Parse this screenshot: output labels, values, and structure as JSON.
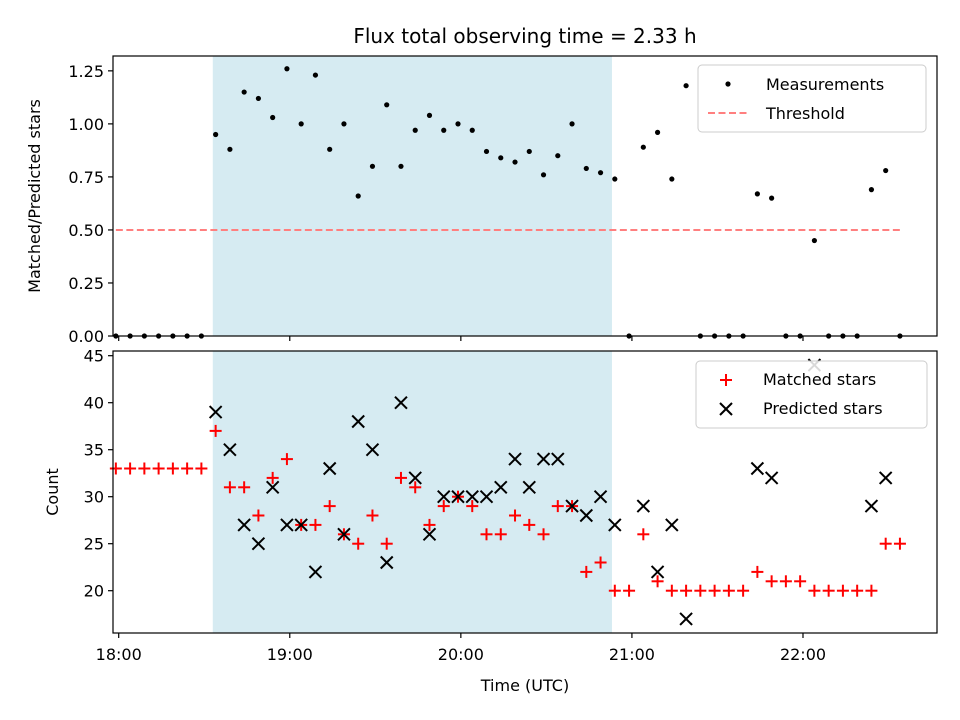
{
  "chart_data": [
    {
      "type": "scatter",
      "title": "Flux total observing time = 2.33 h",
      "xlabel": "",
      "ylabel": "Matched/Predicted stars",
      "xlim": [
        "17:58",
        "22:47"
      ],
      "ylim": [
        0,
        1.32
      ],
      "yticks": [
        0.0,
        0.25,
        0.5,
        0.75,
        1.0,
        1.25
      ],
      "ytick_labels": [
        "0.00",
        "0.25",
        "0.50",
        "0.75",
        "1.00",
        "1.25"
      ],
      "shaded_region": {
        "start": "18:33",
        "end": "20:53",
        "color": "#add8e6"
      },
      "legend": {
        "position": "upper right",
        "entries": [
          "Measurements",
          "Threshold"
        ]
      },
      "series": [
        {
          "name": "Measurements",
          "marker": "dot",
          "color": "#000000",
          "x": [
            "17:59",
            "18:04",
            "18:09",
            "18:14",
            "18:19",
            "18:24",
            "18:29",
            "18:34",
            "18:39",
            "18:44",
            "18:49",
            "18:54",
            "18:59",
            "19:04",
            "19:09",
            "19:14",
            "19:19",
            "19:24",
            "19:29",
            "19:34",
            "19:39",
            "19:44",
            "19:49",
            "19:54",
            "19:59",
            "20:04",
            "20:09",
            "20:14",
            "20:19",
            "20:24",
            "20:29",
            "20:34",
            "20:39",
            "20:44",
            "20:49",
            "20:54",
            "20:59",
            "21:04",
            "21:09",
            "21:14",
            "21:19",
            "21:24",
            "21:29",
            "21:34",
            "21:39",
            "21:44",
            "21:49",
            "21:54",
            "21:59",
            "22:04",
            "22:09",
            "22:14",
            "22:19",
            "22:24",
            "22:29",
            "22:34"
          ],
          "y": [
            0,
            0,
            0,
            0,
            0,
            0,
            0,
            0.95,
            0.88,
            1.15,
            1.12,
            1.03,
            1.26,
            1.0,
            1.23,
            0.88,
            1.0,
            0.66,
            0.8,
            1.09,
            0.8,
            0.97,
            1.04,
            0.97,
            1.0,
            0.97,
            0.87,
            0.84,
            0.82,
            0.87,
            0.76,
            0.85,
            1.0,
            0.79,
            0.77,
            0.74,
            0,
            0.89,
            0.96,
            0.74,
            1.18,
            0,
            0,
            0,
            0,
            0.67,
            0.65,
            0,
            0,
            0.45,
            0,
            0,
            0,
            0.69,
            0.78,
            0
          ]
        },
        {
          "name": "Threshold",
          "type": "line",
          "style": "dashed",
          "color": "#ff7f7f",
          "x": [
            "17:59",
            "22:34"
          ],
          "y": [
            0.5,
            0.5
          ]
        }
      ]
    },
    {
      "type": "scatter",
      "title": "",
      "xlabel": "Time (UTC)",
      "ylabel": "Count",
      "xlim": [
        "17:58",
        "22:47"
      ],
      "ylim": [
        15.5,
        45.5
      ],
      "yticks": [
        20,
        25,
        30,
        35,
        40,
        45
      ],
      "ytick_labels": [
        "20",
        "25",
        "30",
        "35",
        "40",
        "45"
      ],
      "xticks": [
        "18:00",
        "19:00",
        "20:00",
        "21:00",
        "22:00"
      ],
      "xtick_labels": [
        "18:00",
        "19:00",
        "20:00",
        "21:00",
        "22:00"
      ],
      "shaded_region": {
        "start": "18:33",
        "end": "20:53",
        "color": "#add8e6"
      },
      "legend": {
        "position": "upper right",
        "entries": [
          "Matched stars",
          "Predicted stars"
        ]
      },
      "series": [
        {
          "name": "Matched stars",
          "marker": "plus",
          "color": "#ff0000",
          "x": [
            "17:59",
            "18:04",
            "18:09",
            "18:14",
            "18:19",
            "18:24",
            "18:29",
            "18:34",
            "18:39",
            "18:44",
            "18:49",
            "18:54",
            "18:59",
            "19:04",
            "19:09",
            "19:14",
            "19:19",
            "19:24",
            "19:29",
            "19:34",
            "19:39",
            "19:44",
            "19:49",
            "19:54",
            "19:59",
            "20:04",
            "20:09",
            "20:14",
            "20:19",
            "20:24",
            "20:29",
            "20:34",
            "20:39",
            "20:44",
            "20:49",
            "20:54",
            "20:59",
            "21:04",
            "21:09",
            "21:14",
            "21:19",
            "21:24",
            "21:29",
            "21:34",
            "21:39",
            "21:44",
            "21:49",
            "21:54",
            "21:59",
            "22:04",
            "22:09",
            "22:14",
            "22:19",
            "22:24",
            "22:29",
            "22:34"
          ],
          "y": [
            33,
            33,
            33,
            33,
            33,
            33,
            33,
            37,
            31,
            31,
            28,
            32,
            34,
            27,
            27,
            29,
            26,
            25,
            28,
            25,
            32,
            31,
            27,
            29,
            30,
            29,
            26,
            26,
            28,
            27,
            26,
            29,
            29,
            22,
            23,
            20,
            20,
            26,
            21,
            20,
            20,
            20,
            20,
            20,
            20,
            22,
            21,
            21,
            21,
            20,
            20,
            20,
            20,
            20,
            25,
            25
          ]
        },
        {
          "name": "Predicted stars",
          "marker": "x",
          "color": "#000000",
          "x": [
            "18:34",
            "18:39",
            "18:44",
            "18:49",
            "18:54",
            "18:59",
            "19:04",
            "19:09",
            "19:14",
            "19:19",
            "19:24",
            "19:29",
            "19:34",
            "19:39",
            "19:44",
            "19:49",
            "19:54",
            "19:59",
            "20:04",
            "20:09",
            "20:14",
            "20:19",
            "20:24",
            "20:29",
            "20:34",
            "20:39",
            "20:44",
            "20:49",
            "20:54",
            "21:04",
            "21:09",
            "21:14",
            "21:19",
            "21:44",
            "21:49",
            "22:04",
            "22:24",
            "22:29"
          ],
          "y": [
            39,
            35,
            27,
            25,
            31,
            27,
            27,
            22,
            33,
            26,
            38,
            35,
            23,
            40,
            32,
            26,
            30,
            30,
            30,
            30,
            31,
            34,
            31,
            34,
            34,
            29,
            28,
            30,
            27,
            29,
            22,
            27,
            17,
            33,
            32,
            44,
            29,
            32
          ]
        }
      ]
    }
  ]
}
